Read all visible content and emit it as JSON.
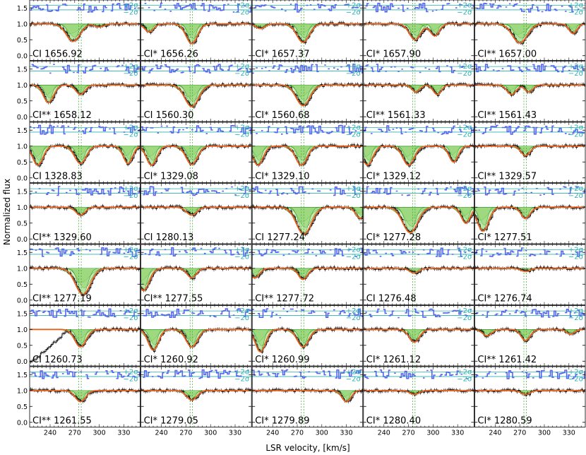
{
  "chart_data": {
    "type": "line",
    "xlabel": "LSR velocity, [km/s]",
    "ylabel": "Normalized flux",
    "xlim": [
      215,
      350
    ],
    "ylim": [
      -0.15,
      1.75
    ],
    "x_ticks": [
      240,
      270,
      300,
      330
    ],
    "y_ticks": [
      0.0,
      0.5,
      1.0,
      1.5
    ],
    "sigma_labels": [
      "+2σ",
      "−2σ"
    ],
    "component_velocities": [
      275,
      278
    ],
    "grid": false,
    "layout": {
      "rows": 7,
      "cols": 5
    },
    "colors": {
      "data": "#000000",
      "model": "#e8601c",
      "component_fill": "#8fd36b",
      "component_line": "#3ca02c",
      "residuals": "#5566ee",
      "sigma_lines": "#2ab0b0",
      "component_markers": "#3ca02c"
    },
    "panels": [
      {
        "label": "CI 1656.92",
        "lines": [
          {
            "center": 268,
            "depth": 0.55,
            "width": 12
          },
          {
            "center": 300,
            "depth": 0.1,
            "width": 8
          }
        ],
        "left_absorption": false
      },
      {
        "label": "CI* 1656.26",
        "lines": [
          {
            "center": 277,
            "depth": 0.62,
            "width": 10
          },
          {
            "center": 225,
            "depth": 0.25,
            "width": 8
          }
        ],
        "left_absorption": false
      },
      {
        "label": "CI* 1657.37",
        "lines": [
          {
            "center": 277,
            "depth": 0.58,
            "width": 11
          },
          {
            "center": 225,
            "depth": 0.15,
            "width": 8
          }
        ],
        "left_absorption": false
      },
      {
        "label": "CI* 1657.90",
        "lines": [
          {
            "center": 278,
            "depth": 0.5,
            "width": 10
          },
          {
            "center": 302,
            "depth": 0.38,
            "width": 8
          }
        ],
        "left_absorption": false
      },
      {
        "label": "CI** 1657.00",
        "lines": [
          {
            "center": 270,
            "depth": 0.6,
            "width": 13
          },
          {
            "center": 335,
            "depth": 0.3,
            "width": 7
          }
        ],
        "left_absorption": false
      },
      {
        "label": "CI** 1658.12",
        "lines": [
          {
            "center": 238,
            "depth": 0.55,
            "width": 9
          },
          {
            "center": 277,
            "depth": 0.3,
            "width": 8
          }
        ],
        "left_absorption": false
      },
      {
        "label": "CI 1560.30",
        "lines": [
          {
            "center": 277,
            "depth": 0.68,
            "width": 12
          }
        ],
        "left_absorption": false
      },
      {
        "label": "CI* 1560.68",
        "lines": [
          {
            "center": 277,
            "depth": 0.65,
            "width": 12
          }
        ],
        "left_absorption": false
      },
      {
        "label": "CI** 1561.33",
        "lines": [
          {
            "center": 279,
            "depth": 0.22,
            "width": 7
          },
          {
            "center": 305,
            "depth": 0.3,
            "width": 7
          }
        ],
        "left_absorption": false
      },
      {
        "label": "CI** 1561.43",
        "lines": [
          {
            "center": 260,
            "depth": 0.3,
            "width": 8
          },
          {
            "center": 281,
            "depth": 0.22,
            "width": 7
          }
        ],
        "left_absorption": false
      },
      {
        "label": "CI 1328.83",
        "lines": [
          {
            "center": 277,
            "depth": 0.55,
            "width": 10
          },
          {
            "center": 225,
            "depth": 0.6,
            "width": 9
          },
          {
            "center": 335,
            "depth": 0.55,
            "width": 8
          }
        ],
        "left_absorption": false
      },
      {
        "label": "CI* 1329.08",
        "lines": [
          {
            "center": 228,
            "depth": 0.6,
            "width": 9
          },
          {
            "center": 277,
            "depth": 0.58,
            "width": 10
          }
        ],
        "left_absorption": false
      },
      {
        "label": "CI* 1329.10",
        "lines": [
          {
            "center": 222,
            "depth": 0.6,
            "width": 9
          },
          {
            "center": 275,
            "depth": 0.6,
            "width": 10
          }
        ],
        "left_absorption": false
      },
      {
        "label": "CI* 1329.12",
        "lines": [
          {
            "center": 220,
            "depth": 0.6,
            "width": 9
          },
          {
            "center": 270,
            "depth": 0.6,
            "width": 10
          },
          {
            "center": 325,
            "depth": 0.5,
            "width": 8
          }
        ],
        "left_absorption": false
      },
      {
        "label": "CI** 1329.57",
        "lines": [
          {
            "center": 277,
            "depth": 0.3,
            "width": 8
          }
        ],
        "left_absorption": false
      },
      {
        "label": "CI** 1329.60",
        "lines": [
          {
            "center": 277,
            "depth": 0.25,
            "width": 8
          }
        ],
        "left_absorption": false
      },
      {
        "label": "CI 1280.13",
        "lines": [
          {
            "center": 277,
            "depth": 0.25,
            "width": 9
          }
        ],
        "left_absorption": false
      },
      {
        "label": "CI 1277.24",
        "lines": [
          {
            "center": 278,
            "depth": 0.85,
            "width": 13
          },
          {
            "center": 347,
            "depth": 0.35,
            "width": 8
          }
        ],
        "left_absorption": false
      },
      {
        "label": "CI* 1277.28",
        "lines": [
          {
            "center": 272,
            "depth": 0.8,
            "width": 13
          },
          {
            "center": 340,
            "depth": 0.5,
            "width": 8
          }
        ],
        "left_absorption": false
      },
      {
        "label": "CI* 1277.51",
        "lines": [
          {
            "center": 225,
            "depth": 0.75,
            "width": 10
          },
          {
            "center": 277,
            "depth": 0.35,
            "width": 8
          }
        ],
        "left_absorption": false
      },
      {
        "label": "CI** 1277.19",
        "lines": [
          {
            "center": 280,
            "depth": 0.82,
            "width": 13
          }
        ],
        "left_absorption": false
      },
      {
        "label": "CI** 1277.55",
        "lines": [
          {
            "center": 218,
            "depth": 0.7,
            "width": 10
          },
          {
            "center": 277,
            "depth": 0.3,
            "width": 8
          }
        ],
        "left_absorption": false
      },
      {
        "label": "CI** 1277.72",
        "lines": [
          {
            "center": 277,
            "depth": 0.35,
            "width": 8
          },
          {
            "center": 218,
            "depth": 0.3,
            "width": 8
          }
        ],
        "left_absorption": false
      },
      {
        "label": "CI 1276.48",
        "lines": [
          {
            "center": 277,
            "depth": 0.15,
            "width": 8
          }
        ],
        "left_absorption": false
      },
      {
        "label": "CI* 1276.74",
        "lines": [
          {
            "center": 277,
            "depth": 0.1,
            "width": 8
          }
        ],
        "left_absorption": false
      },
      {
        "label": "CI 1260.73",
        "lines": [
          {
            "center": 277,
            "depth": 0.55,
            "width": 10
          }
        ],
        "left_absorption": true
      },
      {
        "label": "CI* 1260.92",
        "lines": [
          {
            "center": 230,
            "depth": 0.65,
            "width": 9
          },
          {
            "center": 277,
            "depth": 0.55,
            "width": 10
          }
        ],
        "left_absorption": false
      },
      {
        "label": "CI* 1260.99",
        "lines": [
          {
            "center": 225,
            "depth": 0.7,
            "width": 9
          },
          {
            "center": 277,
            "depth": 0.55,
            "width": 10
          }
        ],
        "left_absorption": false
      },
      {
        "label": "CI* 1261.12",
        "lines": [
          {
            "center": 277,
            "depth": 0.4,
            "width": 9
          }
        ],
        "left_absorption": false
      },
      {
        "label": "CI** 1261.42",
        "lines": [
          {
            "center": 230,
            "depth": 0.2,
            "width": 8
          },
          {
            "center": 277,
            "depth": 0.35,
            "width": 8
          },
          {
            "center": 332,
            "depth": 0.15,
            "width": 7
          }
        ],
        "left_absorption": false
      },
      {
        "label": "CI** 1261.55",
        "lines": [
          {
            "center": 277,
            "depth": 0.35,
            "width": 9
          }
        ],
        "left_absorption": false
      },
      {
        "label": "CI* 1279.05",
        "lines": [
          {
            "center": 277,
            "depth": 0.3,
            "width": 9
          }
        ],
        "left_absorption": false
      },
      {
        "label": "CI* 1279.89",
        "lines": [
          {
            "center": 330,
            "depth": 0.35,
            "width": 8
          }
        ],
        "left_absorption": false
      },
      {
        "label": "CI* 1280.40",
        "lines": [
          {
            "center": 277,
            "depth": 0.12,
            "width": 8
          }
        ],
        "left_absorption": false
      },
      {
        "label": "CI* 1280.59",
        "lines": [
          {
            "center": 277,
            "depth": 0.12,
            "width": 8
          }
        ],
        "left_absorption": false
      }
    ]
  }
}
